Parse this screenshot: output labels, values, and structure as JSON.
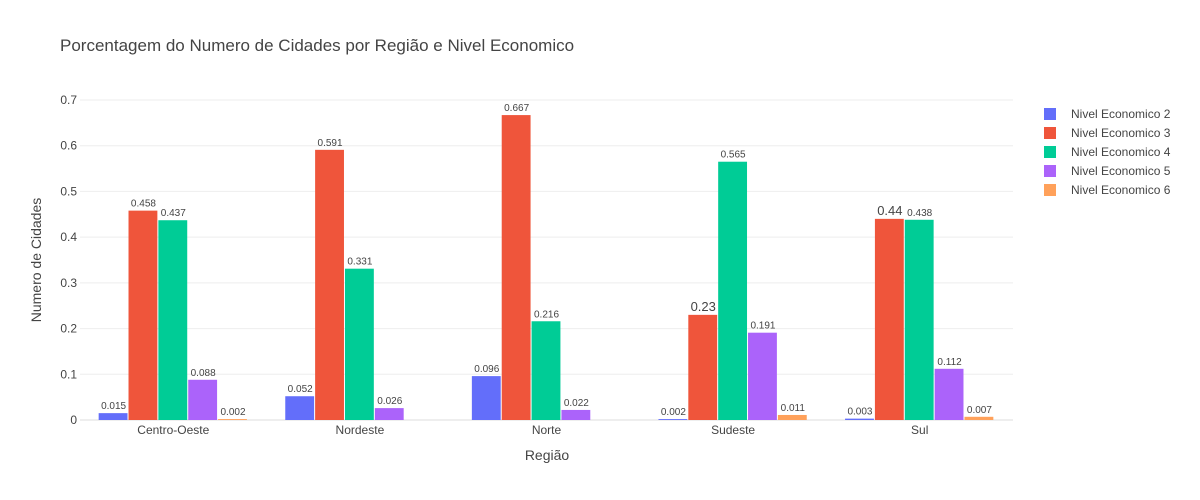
{
  "chart_data": {
    "type": "bar",
    "title": "Porcentagem do Numero de Cidades por Região e Nivel Economico",
    "xlabel": "Região",
    "ylabel": "Numero de Cidades",
    "ylim": [
      0,
      0.7
    ],
    "yticks": [
      0,
      0.1,
      0.2,
      0.3,
      0.4,
      0.5,
      0.6,
      0.7
    ],
    "ytick_labels": [
      "0",
      "0.1",
      "0.2",
      "0.3",
      "0.4",
      "0.5",
      "0.6",
      "0.7"
    ],
    "categories": [
      "Centro-Oeste",
      "Nordeste",
      "Norte",
      "Sudeste",
      "Sul"
    ],
    "grid": true,
    "legend_position": "top-right",
    "series": [
      {
        "name": "Nivel Economico 2",
        "color": "#636efa",
        "values": [
          0.015,
          0.052,
          0.096,
          0.002,
          0.003
        ],
        "labels": [
          "0.015",
          "0.052",
          "0.096",
          "0.002",
          "0.003"
        ]
      },
      {
        "name": "Nivel Economico 3",
        "color": "#ef553b",
        "values": [
          0.458,
          0.591,
          0.667,
          0.23,
          0.44
        ],
        "labels": [
          "0.458",
          "0.591",
          "0.667",
          "0.23",
          "0.44"
        ]
      },
      {
        "name": "Nivel Economico 4",
        "color": "#00cc96",
        "values": [
          0.437,
          0.331,
          0.216,
          0.565,
          0.438
        ],
        "labels": [
          "0.437",
          "0.331",
          "0.216",
          "0.565",
          "0.438"
        ]
      },
      {
        "name": "Nivel Economico 5",
        "color": "#ab63fa",
        "values": [
          0.088,
          0.026,
          0.022,
          0.191,
          0.112
        ],
        "labels": [
          "0.088",
          "0.026",
          "0.022",
          "0.191",
          "0.112"
        ]
      },
      {
        "name": "Nivel Economico 6",
        "color": "#ffa15a",
        "values": [
          0.002,
          null,
          null,
          0.011,
          0.007
        ],
        "labels": [
          "0.002",
          "",
          "",
          "0.011",
          "0.007"
        ]
      }
    ]
  }
}
